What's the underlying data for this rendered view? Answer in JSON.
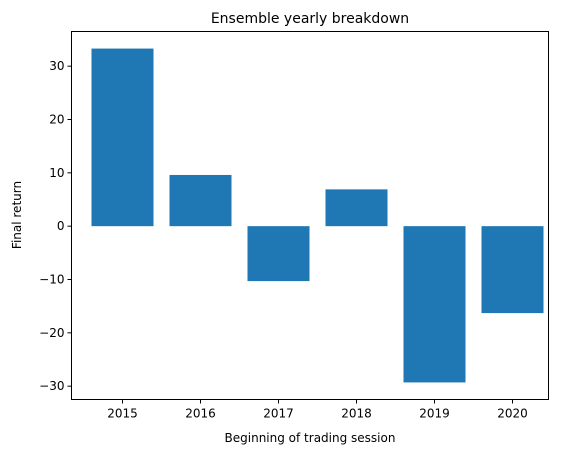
{
  "chart_data": {
    "type": "bar",
    "title": "Ensemble yearly breakdown",
    "xlabel": "Beginning of trading session",
    "ylabel": "Final return",
    "categories": [
      "2015",
      "2016",
      "2017",
      "2018",
      "2019",
      "2020"
    ],
    "values": [
      33.3,
      9.6,
      -10.3,
      6.9,
      -29.3,
      -16.3
    ],
    "ylim": [
      -32.5,
      36.5
    ],
    "yticks": [
      30,
      20,
      10,
      0,
      -10,
      -20,
      -30
    ],
    "ytick_labels": [
      "30",
      "20",
      "10",
      "0",
      "−10",
      "−20",
      "−30"
    ],
    "bar_color": "#1f77b4",
    "grid": false,
    "legend": "none"
  }
}
